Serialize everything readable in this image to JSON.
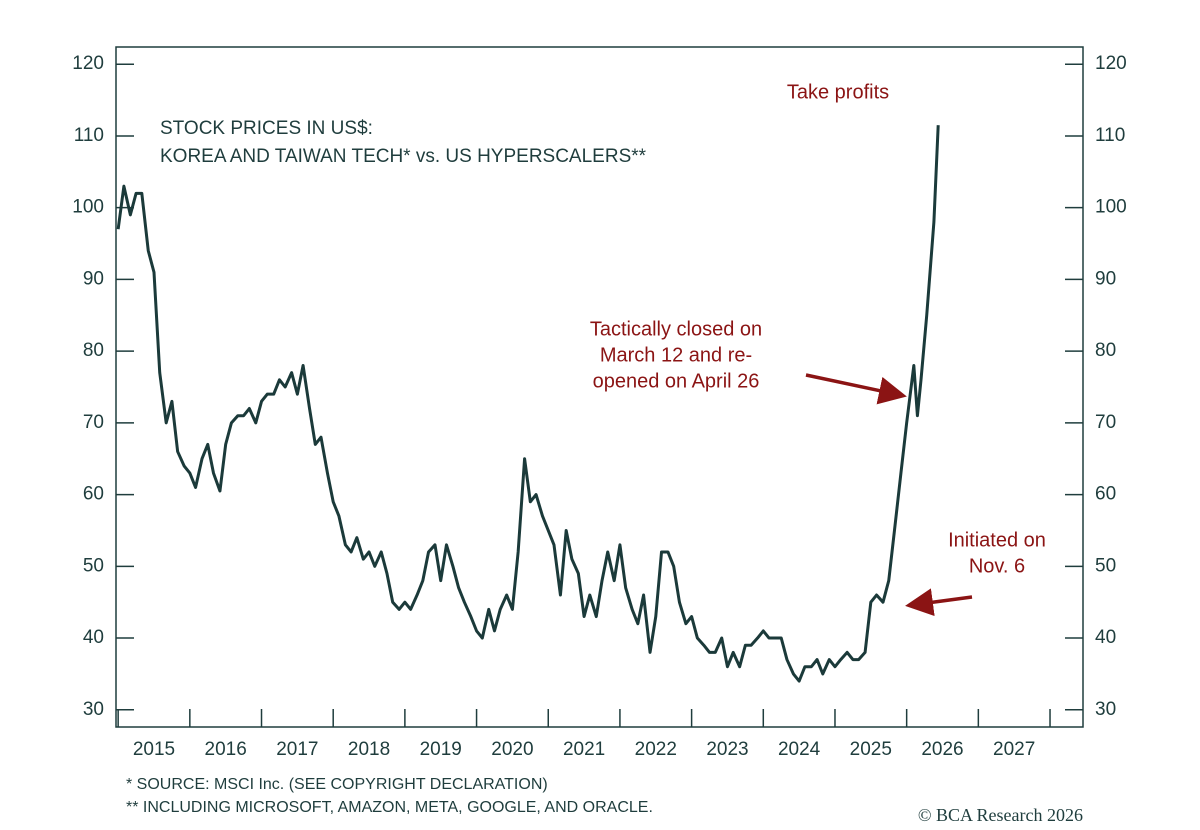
{
  "chart_data": {
    "type": "line",
    "title_lines": [
      "STOCK PRICES IN US$:",
      "KOREA AND TAIWAN TECH* vs. US HYPERSCALERS**"
    ],
    "annotations": [
      [
        "Take profits"
      ],
      [
        "Tactically closed on",
        "March 12 and re-",
        "opened on April 26"
      ],
      [
        "Initiated on",
        "Nov. 6"
      ]
    ],
    "footnotes": [
      "* SOURCE: MSCI Inc. (SEE COPYRIGHT DECLARATION)",
      "** INCLUDING MICROSOFT, AMAZON, META, GOOGLE, AND ORACLE."
    ],
    "credit": "© BCA Research 2026",
    "xlim": [
      2014.97,
      2028.46
    ],
    "xticks": [
      {
        "value": 2015.5,
        "label": "2015"
      },
      {
        "value": 2016.5,
        "label": "2016"
      },
      {
        "value": 2017.5,
        "label": "2017"
      },
      {
        "value": 2018.5,
        "label": "2018"
      },
      {
        "value": 2019.5,
        "label": "2019"
      },
      {
        "value": 2020.5,
        "label": "2020"
      },
      {
        "value": 2021.5,
        "label": "2021"
      },
      {
        "value": 2022.5,
        "label": "2022"
      },
      {
        "value": 2023.5,
        "label": "2023"
      },
      {
        "value": 2024.5,
        "label": "2024"
      },
      {
        "value": 2025.5,
        "label": "2025"
      },
      {
        "value": 2026.5,
        "label": "2026"
      },
      {
        "value": 2027.5,
        "label": "2027"
      }
    ],
    "x_tick_marks": [
      2015,
      2016,
      2017,
      2018,
      2019,
      2020,
      2021,
      2022,
      2023,
      2024,
      2025,
      2026,
      2027,
      2028
    ],
    "ylim": [
      27.6,
      122.4
    ],
    "yticks": [
      30,
      40,
      50,
      60,
      70,
      80,
      90,
      100,
      110,
      120
    ],
    "y2lim": [
      27.6,
      122.4
    ],
    "y2ticks": [
      30,
      40,
      50,
      60,
      70,
      80,
      90,
      100,
      110,
      120
    ],
    "color": "#1b3a3a",
    "x": [
      2015.0,
      2015.08,
      2015.17,
      2015.25,
      2015.33,
      2015.42,
      2015.5,
      2015.58,
      2015.67,
      2015.75,
      2015.83,
      2015.92,
      2016.0,
      2016.08,
      2016.17,
      2016.25,
      2016.33,
      2016.42,
      2016.5,
      2016.58,
      2016.67,
      2016.75,
      2016.83,
      2016.92,
      2017.0,
      2017.08,
      2017.17,
      2017.25,
      2017.33,
      2017.42,
      2017.5,
      2017.58,
      2017.67,
      2017.75,
      2017.83,
      2017.92,
      2018.0,
      2018.08,
      2018.17,
      2018.25,
      2018.33,
      2018.42,
      2018.5,
      2018.58,
      2018.67,
      2018.75,
      2018.83,
      2018.92,
      2019.0,
      2019.08,
      2019.17,
      2019.25,
      2019.33,
      2019.42,
      2019.5,
      2019.58,
      2019.67,
      2019.75,
      2019.83,
      2019.92,
      2020.0,
      2020.08,
      2020.17,
      2020.25,
      2020.33,
      2020.42,
      2020.5,
      2020.58,
      2020.67,
      2020.75,
      2020.83,
      2020.92,
      2021.0,
      2021.08,
      2021.17,
      2021.25,
      2021.33,
      2021.42,
      2021.5,
      2021.58,
      2021.67,
      2021.75,
      2021.83,
      2021.92,
      2022.0,
      2022.08,
      2022.17,
      2022.25,
      2022.33,
      2022.42,
      2022.5,
      2022.58,
      2022.67,
      2022.75,
      2022.83,
      2022.92,
      2023.0,
      2023.08,
      2023.17,
      2023.25,
      2023.33,
      2023.42,
      2023.5,
      2023.58,
      2023.67,
      2023.75,
      2023.83,
      2023.92,
      2024.0,
      2024.08,
      2024.17,
      2024.25,
      2024.33,
      2024.42,
      2024.5,
      2024.58,
      2024.67,
      2024.75,
      2024.83,
      2024.92,
      2025.0,
      2025.08,
      2025.17,
      2025.25,
      2025.33,
      2025.42,
      2025.5,
      2025.58,
      2025.67,
      2025.75,
      2025.83,
      2025.92,
      2026.0,
      2026.05,
      2026.1,
      2026.15,
      2026.2,
      2026.28,
      2026.38,
      2026.44
    ],
    "values": [
      97,
      103,
      99,
      102,
      102,
      94,
      91,
      77,
      70,
      73,
      66,
      64,
      63,
      61,
      65,
      67,
      63,
      60.5,
      67,
      70,
      71,
      71,
      72,
      70,
      73,
      74,
      74,
      76,
      75,
      77,
      74,
      78,
      72,
      67,
      68,
      63,
      59,
      57,
      53,
      52,
      54,
      51,
      52,
      50,
      52,
      49,
      45,
      44,
      45,
      44,
      46,
      48,
      52,
      53,
      48,
      53,
      50,
      47,
      45,
      43,
      41,
      40,
      44,
      41,
      44,
      46,
      44,
      52,
      65,
      59,
      60,
      57,
      55,
      53,
      46,
      55,
      51,
      49,
      43,
      46,
      43,
      48,
      52,
      48,
      53,
      47,
      44,
      42,
      46,
      38,
      43,
      52,
      52,
      50,
      45,
      42,
      43,
      40,
      39,
      38,
      38,
      40,
      36,
      38,
      36,
      39,
      39,
      40,
      41,
      40,
      40,
      40,
      37,
      35,
      34,
      36,
      36,
      37,
      35,
      37,
      36,
      37,
      38,
      37,
      37,
      38,
      45,
      46,
      45,
      48,
      55,
      63,
      70,
      74,
      78,
      71,
      76,
      85,
      98,
      111.5
    ]
  }
}
